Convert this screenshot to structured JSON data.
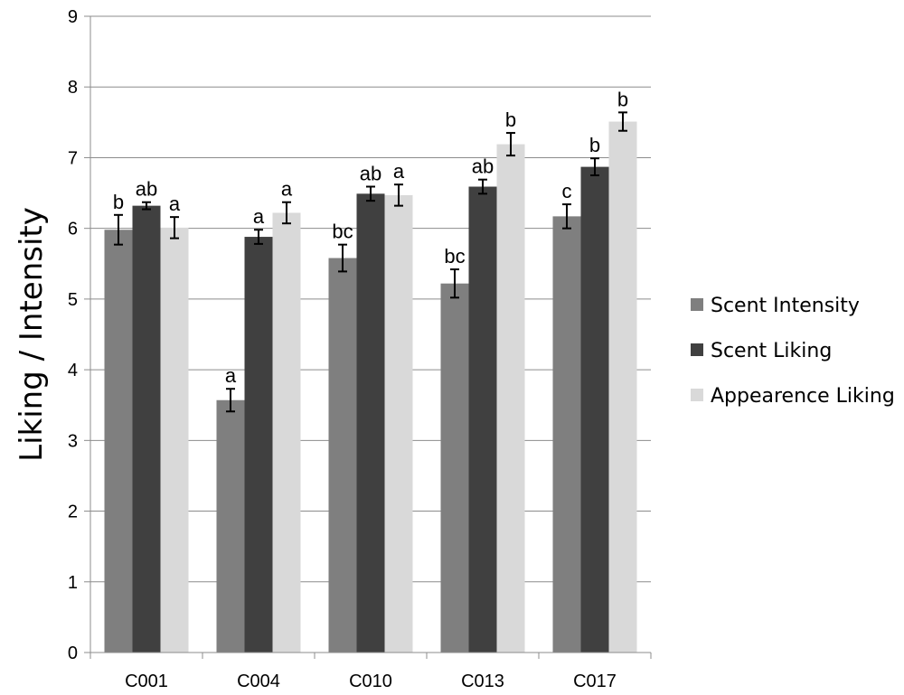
{
  "chart_data": {
    "type": "bar",
    "title": "",
    "xlabel": "",
    "ylabel": "Liking / Intensity",
    "ylim": [
      0,
      9
    ],
    "yticks": [
      0,
      1,
      2,
      3,
      4,
      5,
      6,
      7,
      8,
      9
    ],
    "grid": true,
    "legend_position": "right",
    "categories": [
      "C001",
      "C004",
      "C010",
      "C013",
      "C017"
    ],
    "series": [
      {
        "name": "Scent Intensity",
        "color": "#7f7f7f",
        "values": [
          5.98,
          3.57,
          5.58,
          5.22,
          6.17
        ],
        "errors": [
          0.21,
          0.16,
          0.19,
          0.2,
          0.17
        ],
        "labels": [
          "b",
          "a",
          "bc",
          "bc",
          "c"
        ]
      },
      {
        "name": "Scent Liking",
        "color": "#404040",
        "values": [
          6.32,
          5.88,
          6.49,
          6.59,
          6.87
        ],
        "errors": [
          0.05,
          0.1,
          0.1,
          0.1,
          0.12
        ],
        "labels": [
          "ab",
          "a",
          "ab",
          "ab",
          "b"
        ]
      },
      {
        "name": "Appearence Liking",
        "color": "#d9d9d9",
        "values": [
          6.01,
          6.22,
          6.47,
          7.19,
          7.51
        ],
        "errors": [
          0.15,
          0.15,
          0.15,
          0.16,
          0.13
        ],
        "labels": [
          "a",
          "a",
          "a",
          "b",
          "b"
        ]
      }
    ]
  }
}
